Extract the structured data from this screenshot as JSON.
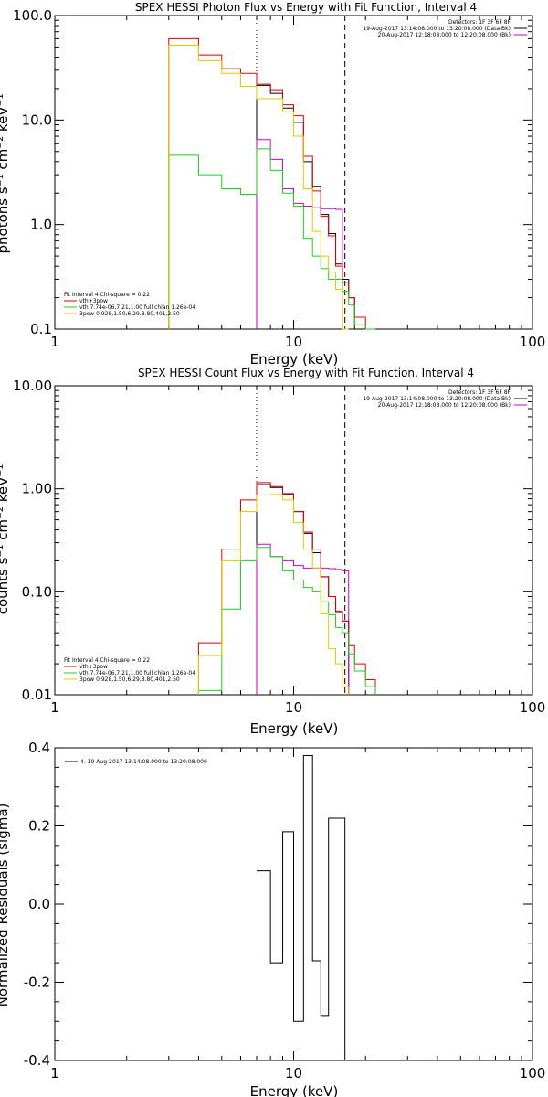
{
  "chart_data": [
    {
      "type": "line",
      "title": "SPEX HESSI Photon Flux vs Energy with Fit Function, Interval 4",
      "xlabel": "Energy (keV)",
      "ylabel": "photons s⁻¹ cm⁻² keV⁻¹",
      "x_scale": "log",
      "y_scale": "log",
      "xlim": [
        1,
        100
      ],
      "ylim": [
        0.1,
        100
      ],
      "x_tick_labels": [
        "1",
        "10",
        "100"
      ],
      "y_tick_labels": [
        "0.1",
        "1.0",
        "10.0",
        "100.0"
      ],
      "vertical_lines": [
        {
          "x": 7.0,
          "style": "dotted"
        },
        {
          "x": 16.4,
          "style": "dashed"
        }
      ],
      "header_legend": [
        {
          "label": "Detectors: 1F 3F 6F 8F",
          "color": ""
        },
        {
          "label": "19-Aug-2017 13:14:08.000 to 13:20:08.000 (Data-Bk)",
          "color": "#000000"
        },
        {
          "label": "20-Aug-2017 12:18:08.000 to 12:20:08.000 (Bk)",
          "color": "#cc00cc"
        }
      ],
      "fit_legend": [
        {
          "label": "Fit Interval  4    Chi-square = 0.22",
          "color": ""
        },
        {
          "label": "vth+3pow",
          "color": "#dd0000"
        },
        {
          "label": "vth 7.74e-06,7.21,1.00  full chian 1.26e-04",
          "color": "#22cc22"
        },
        {
          "label": "3pow 0.928,1.50,6.29,8.80,401,2.50",
          "color": "#ddcc00"
        }
      ],
      "edges": [
        3.0,
        4.0,
        5.0,
        6.0,
        7.0,
        8.0,
        9.0,
        10.0,
        11.0,
        12.0,
        13.0,
        14.0,
        15.0,
        16.0,
        17.0,
        18.0,
        20.0,
        22.0
      ],
      "series": [
        {
          "name": "data-bk",
          "color": "#000000",
          "values": [
            null,
            null,
            null,
            null,
            21.5,
            18.0,
            13.0,
            9.5,
            4.0,
            2.3,
            1.25,
            0.82,
            0.42,
            0.3,
            0.2,
            null,
            null
          ]
        },
        {
          "name": "bk",
          "color": "#cc00cc",
          "values": [
            null,
            null,
            null,
            null,
            6.5,
            4.2,
            2.2,
            1.6,
            1.5,
            1.45,
            1.42,
            1.42,
            1.4,
            null,
            null,
            null,
            null
          ]
        },
        {
          "name": "vth+3pow",
          "color": "#dd0000",
          "values": [
            60.0,
            42.0,
            31.0,
            28.0,
            22.0,
            19.5,
            14.0,
            11.0,
            4.5,
            2.1,
            1.2,
            0.78,
            0.4,
            0.28,
            0.2,
            0.13,
            0.1
          ]
        },
        {
          "name": "vth",
          "color": "#22cc22",
          "values": [
            4.6,
            3.0,
            2.2,
            1.95,
            5.3,
            3.3,
            2.0,
            1.5,
            0.74,
            0.5,
            0.38,
            0.3,
            0.3,
            0.23,
            0.17,
            0.11,
            0.1
          ]
        },
        {
          "name": "3pow",
          "color": "#ddcc00",
          "values": [
            52.0,
            37.0,
            28.0,
            21.0,
            16.0,
            16.0,
            12.0,
            7.0,
            2.2,
            0.86,
            0.5,
            0.35,
            0.24,
            0.1,
            null,
            null,
            null
          ]
        }
      ]
    },
    {
      "type": "line",
      "title": "SPEX HESSI Count Flux vs Energy with Fit Function, Interval 4",
      "xlabel": "Energy (keV)",
      "ylabel": "counts s⁻¹ cm⁻² keV⁻¹",
      "x_scale": "log",
      "y_scale": "log",
      "xlim": [
        1,
        100
      ],
      "ylim": [
        0.01,
        10
      ],
      "x_tick_labels": [
        "1",
        "10",
        "100"
      ],
      "y_tick_labels": [
        "0.01",
        "0.10",
        "1.00",
        "10.00"
      ],
      "vertical_lines": [
        {
          "x": 7.0,
          "style": "dotted"
        },
        {
          "x": 16.4,
          "style": "dashed"
        }
      ],
      "header_legend": [
        {
          "label": "Detectors: 1F 3F 6F 8F",
          "color": ""
        },
        {
          "label": "19-Aug-2017 13:14:08.000 to 13:20:08.000 (Data-Bk)",
          "color": "#000000"
        },
        {
          "label": "20-Aug-2017 12:18:08.000 to 12:20:08.000 (Bk)",
          "color": "#cc00cc"
        }
      ],
      "fit_legend": [
        {
          "label": "Fit Interval  4    Chi-square = 0.22",
          "color": ""
        },
        {
          "label": "vth+3pow",
          "color": "#dd0000"
        },
        {
          "label": "vth 7.74e-06,7.21,1.00  full chian 1.26e-04",
          "color": "#22cc22"
        },
        {
          "label": "3pow 0.928,1.50,6.29,8.80,401,2.50",
          "color": "#ddcc00"
        }
      ],
      "edges": [
        4.0,
        5.0,
        6.0,
        7.0,
        8.0,
        9.0,
        10.0,
        11.0,
        12.0,
        13.0,
        14.0,
        15.0,
        16.0,
        17.0,
        18.0,
        20.0,
        22.0
      ],
      "series": [
        {
          "name": "data-bk",
          "color": "#000000",
          "values": [
            null,
            null,
            null,
            1.1,
            1.03,
            0.88,
            0.6,
            0.37,
            0.24,
            0.14,
            0.09,
            0.063,
            0.052,
            null,
            null,
            null
          ]
        },
        {
          "name": "bk",
          "color": "#cc00cc",
          "values": [
            null,
            null,
            null,
            0.29,
            0.22,
            0.2,
            0.18,
            0.17,
            0.17,
            0.17,
            0.168,
            0.165,
            0.16,
            null,
            null,
            null
          ]
        },
        {
          "name": "vth+3pow",
          "color": "#dd0000",
          "values": [
            0.032,
            0.26,
            0.78,
            1.15,
            1.05,
            0.9,
            0.6,
            0.38,
            0.26,
            0.14,
            0.09,
            0.065,
            0.052,
            0.03,
            0.02,
            0.014
          ]
        },
        {
          "name": "vth",
          "color": "#22cc22",
          "values": [
            0.011,
            0.068,
            0.2,
            0.27,
            0.22,
            0.16,
            0.13,
            0.11,
            0.1,
            0.08,
            0.06,
            0.045,
            0.04,
            0.025,
            0.017,
            0.012
          ]
        },
        {
          "name": "3pow",
          "color": "#ddcc00",
          "values": [
            0.024,
            0.2,
            0.6,
            0.87,
            0.88,
            0.78,
            0.47,
            0.26,
            0.17,
            0.061,
            0.028,
            0.02,
            0.012,
            null,
            null,
            null
          ]
        }
      ]
    },
    {
      "type": "line",
      "title": "",
      "xlabel": "Energy (keV)",
      "ylabel": "Normalized Residuals (sigma)",
      "x_scale": "log",
      "y_scale": "linear",
      "xlim": [
        1,
        100
      ],
      "ylim": [
        -0.4,
        0.4
      ],
      "x_tick_labels": [
        "1",
        "10",
        "100"
      ],
      "y_tick_labels": [
        "-0.4",
        "-0.2",
        "0.0",
        "0.2",
        "0.4"
      ],
      "legend": [
        {
          "label": "4. 19-Aug-2017 13:14:08.000 to 13:20:08.000",
          "color": "#000000"
        }
      ],
      "edges": [
        7.0,
        8.0,
        9.0,
        10.0,
        11.0,
        12.0,
        13.0,
        14.0,
        15.0,
        16.4
      ],
      "series": [
        {
          "name": "residuals",
          "color": "#000000",
          "values": [
            0.085,
            -0.15,
            0.185,
            -0.3,
            0.38,
            -0.145,
            -0.285,
            0.22,
            0.22
          ]
        }
      ]
    }
  ]
}
